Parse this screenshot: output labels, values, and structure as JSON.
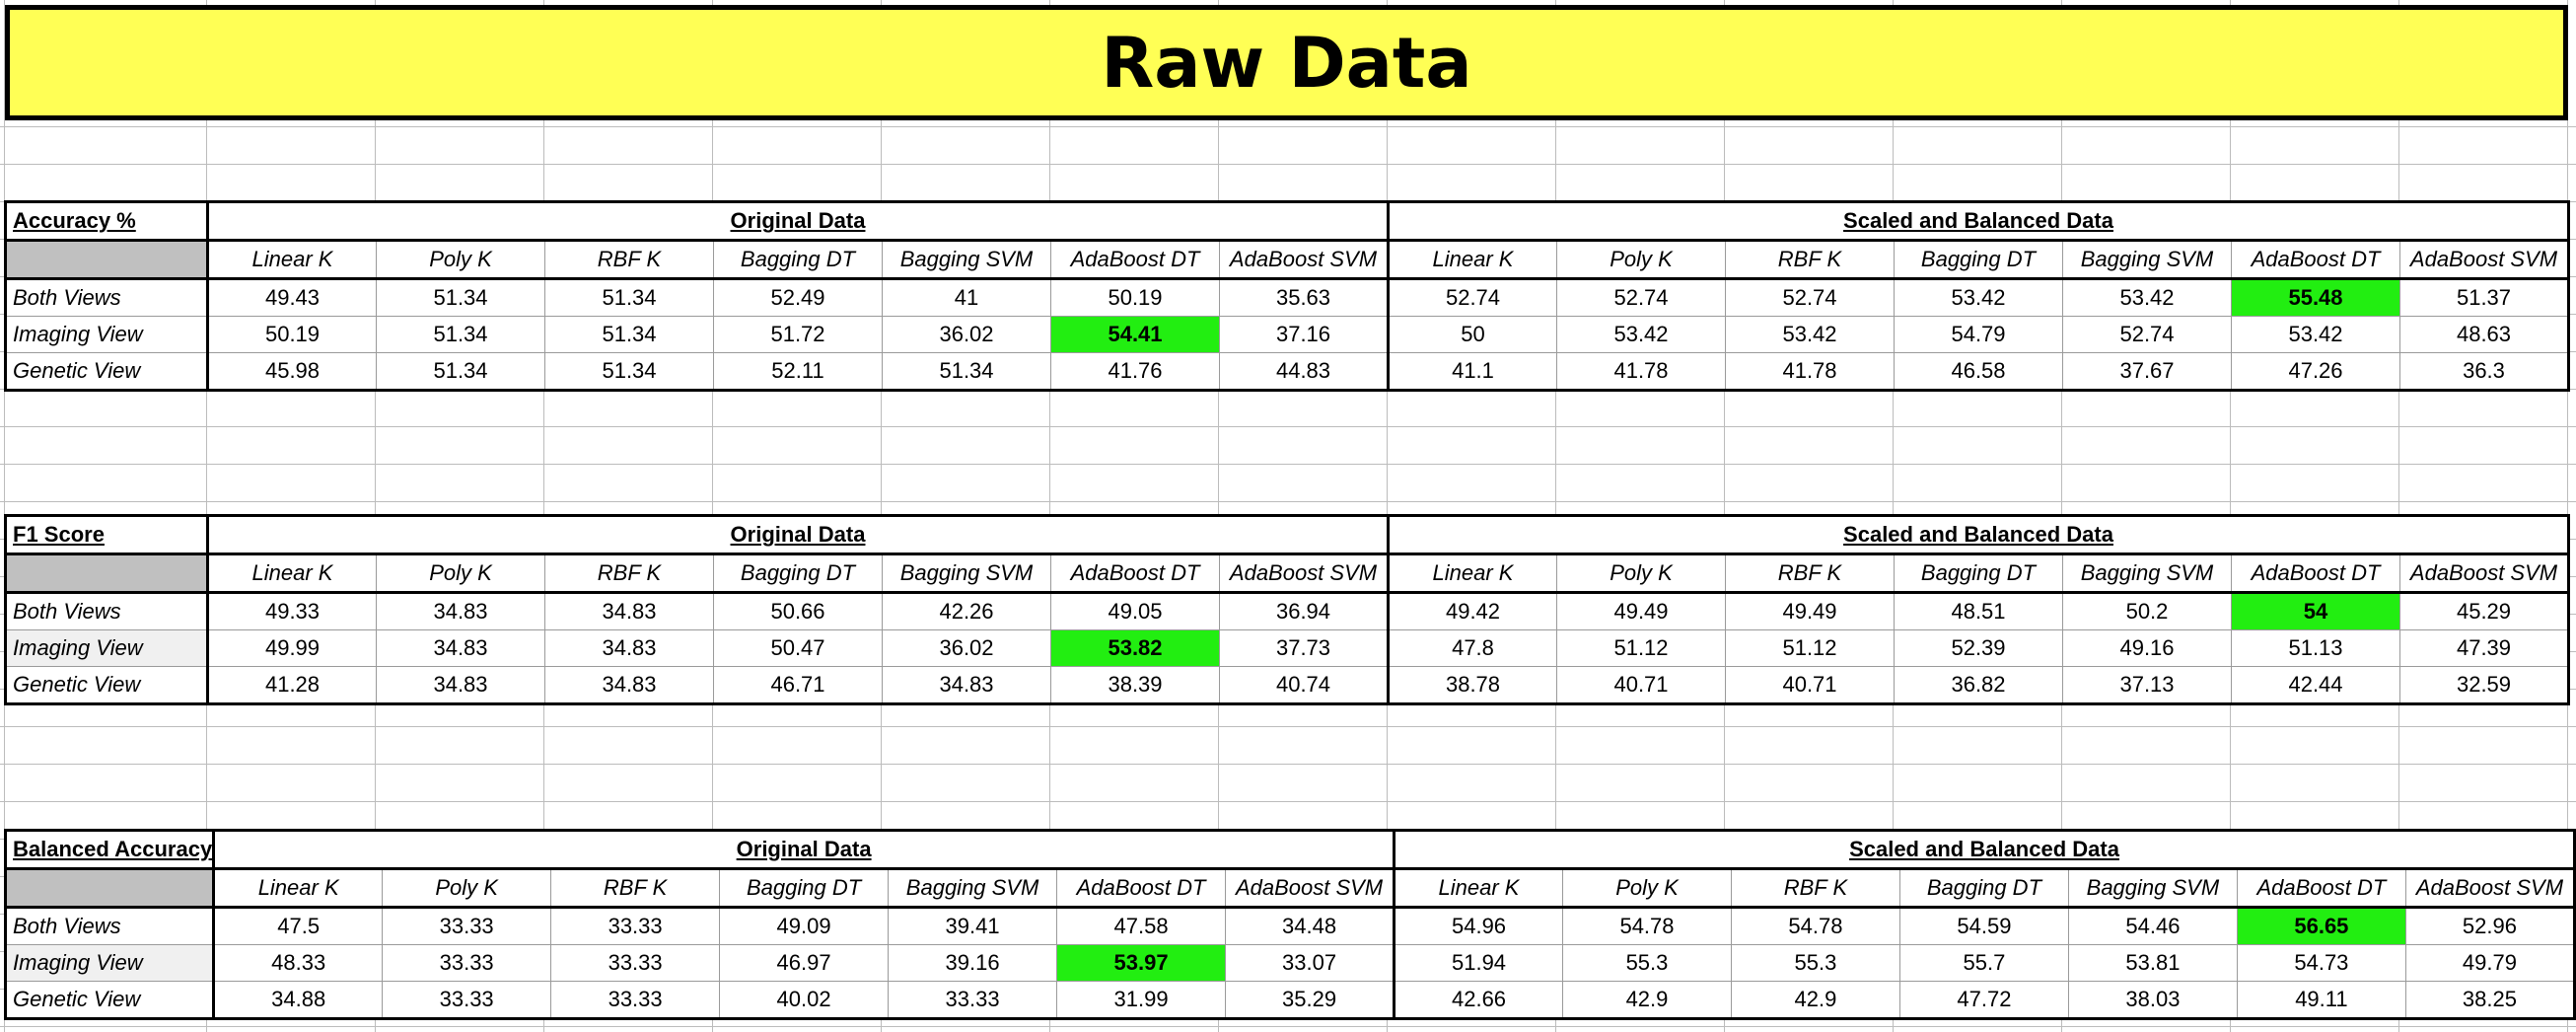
{
  "title": "Raw Data",
  "groups": [
    "Original Data",
    "Scaled and Balanced Data"
  ],
  "column_headers": [
    "Linear K",
    "Poly K",
    "RBF K",
    "Bagging DT",
    "Bagging SVM",
    "AdaBoost DT",
    "AdaBoost SVM",
    "Linear K",
    "Poly K",
    "RBF K",
    "Bagging DT",
    "Bagging SVM",
    "AdaBoost DT",
    "AdaBoost SVM"
  ],
  "highlight_color": "#22ee11",
  "banner_color": "#ffff55",
  "tables": [
    {
      "metric": "Accuracy %",
      "rows": [
        {
          "label": "Both Views",
          "values": [
            "49.43",
            "51.34",
            "51.34",
            "52.49",
            "41",
            "50.19",
            "35.63",
            "52.74",
            "52.74",
            "52.74",
            "53.42",
            "53.42",
            "55.48",
            "51.37"
          ],
          "best_index": 12
        },
        {
          "label": "Imaging View",
          "values": [
            "50.19",
            "51.34",
            "51.34",
            "51.72",
            "36.02",
            "54.41",
            "37.16",
            "50",
            "53.42",
            "53.42",
            "54.79",
            "52.74",
            "53.42",
            "48.63"
          ],
          "best_index": 5
        },
        {
          "label": "Genetic View",
          "values": [
            "45.98",
            "51.34",
            "51.34",
            "52.11",
            "51.34",
            "41.76",
            "44.83",
            "41.1",
            "41.78",
            "41.78",
            "46.58",
            "37.67",
            "47.26",
            "36.3"
          ],
          "best_index": -1
        }
      ]
    },
    {
      "metric": "F1 Score",
      "rows": [
        {
          "label": "Both Views",
          "values": [
            "49.33",
            "34.83",
            "34.83",
            "50.66",
            "42.26",
            "49.05",
            "36.94",
            "49.42",
            "49.49",
            "49.49",
            "48.51",
            "50.2",
            "54",
            "45.29"
          ],
          "best_index": 12
        },
        {
          "label": "Imaging View",
          "values": [
            "49.99",
            "34.83",
            "34.83",
            "50.47",
            "36.02",
            "53.82",
            "37.73",
            "47.8",
            "51.12",
            "51.12",
            "52.39",
            "49.16",
            "51.13",
            "47.39"
          ],
          "best_index": 5
        },
        {
          "label": "Genetic View",
          "values": [
            "41.28",
            "34.83",
            "34.83",
            "46.71",
            "34.83",
            "38.39",
            "40.74",
            "38.78",
            "40.71",
            "40.71",
            "36.82",
            "37.13",
            "42.44",
            "32.59"
          ],
          "best_index": -1
        }
      ]
    },
    {
      "metric": "Balanced Accuracy",
      "rows": [
        {
          "label": "Both Views",
          "values": [
            "47.5",
            "33.33",
            "33.33",
            "49.09",
            "39.41",
            "47.58",
            "34.48",
            "54.96",
            "54.78",
            "54.78",
            "54.59",
            "54.46",
            "56.65",
            "52.96"
          ],
          "best_index": 12
        },
        {
          "label": "Imaging View",
          "values": [
            "48.33",
            "33.33",
            "33.33",
            "46.97",
            "39.16",
            "53.97",
            "33.07",
            "51.94",
            "55.3",
            "55.3",
            "55.7",
            "53.81",
            "54.73",
            "49.79"
          ],
          "best_index": 5
        },
        {
          "label": "Genetic View",
          "values": [
            "34.88",
            "33.33",
            "33.33",
            "40.02",
            "33.33",
            "31.99",
            "35.29",
            "42.66",
            "42.9",
            "42.9",
            "47.72",
            "38.03",
            "49.11",
            "38.25"
          ],
          "best_index": -1
        }
      ]
    }
  ]
}
